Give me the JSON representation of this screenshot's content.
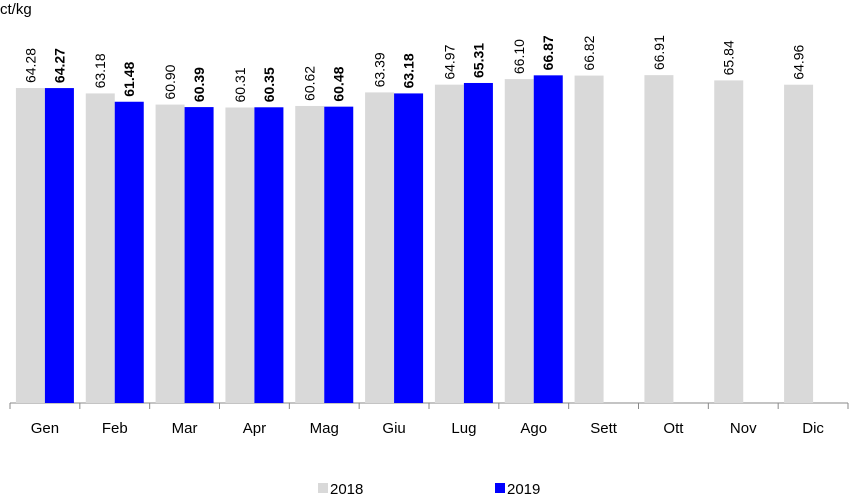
{
  "chart_data": {
    "type": "bar",
    "y_label": "ct/kg",
    "categories": [
      "Gen",
      "Feb",
      "Mar",
      "Apr",
      "Mag",
      "Giu",
      "Lug",
      "Ago",
      "Sett",
      "Ott",
      "Nov",
      "Dic"
    ],
    "series": [
      {
        "name": "2018",
        "color": "#d9d9d9",
        "values": [
          64.28,
          63.18,
          60.9,
          60.31,
          60.62,
          63.39,
          64.97,
          66.1,
          66.82,
          66.91,
          65.84,
          64.96
        ],
        "value_labels": [
          "64.28",
          "63.18",
          "60.90",
          "60.31",
          "60.62",
          "63.39",
          "64.97",
          "66.10",
          "66.82",
          "66.91",
          "65.84",
          "64.96"
        ]
      },
      {
        "name": "2019",
        "color": "#0000ff",
        "values": [
          64.27,
          61.48,
          60.39,
          60.35,
          60.48,
          63.18,
          65.31,
          66.87,
          null,
          null,
          null,
          null
        ],
        "value_labels": [
          "64.27",
          "61.48",
          "60.39",
          "60.35",
          "60.48",
          "63.18",
          "65.31",
          "66.87",
          null,
          null,
          null,
          null
        ]
      }
    ],
    "ylim": [
      0,
      70
    ],
    "legend": "bottom"
  }
}
